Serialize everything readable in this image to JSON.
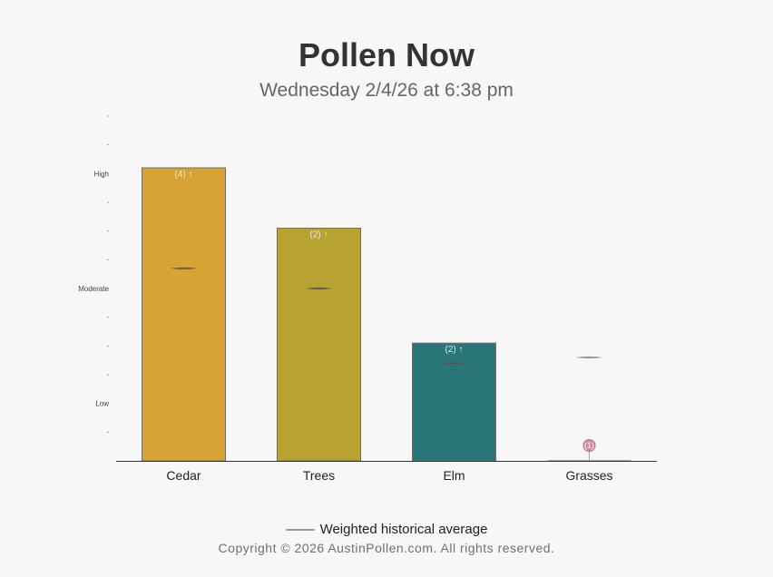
{
  "header": {
    "title": "Pollen Now",
    "subtitle": "Wednesday 2/4/26 at 6:38 pm"
  },
  "legend": {
    "label": "Weighted historical average"
  },
  "footer": {
    "copyright": "Copyright © 2026 AustinPollen.com.  All rights reserved."
  },
  "chart_data": {
    "type": "bar",
    "categories": [
      "Cedar",
      "Trees",
      "Elm",
      "Grasses"
    ],
    "values": [
      10.2,
      8.1,
      4.1,
      0.0
    ],
    "historical_average": [
      6.7,
      6.0,
      3.4,
      3.6
    ],
    "bar_labels": [
      "(4) ↑",
      "(2) ↑",
      "(2) ↑",
      "(1)"
    ],
    "colors": [
      "#d6a334",
      "#b8a332",
      "#287676",
      "#cc8fa6"
    ],
    "y_levels": [
      {
        "value": 2,
        "label": "Low"
      },
      {
        "value": 6,
        "label": "Moderate"
      },
      {
        "value": 10,
        "label": "High"
      }
    ],
    "y_minor_ticks": [
      1,
      3,
      4,
      5,
      7,
      8,
      9,
      11,
      12
    ],
    "ylim": [
      0,
      12
    ],
    "grid": false,
    "legend_position": "bottom"
  }
}
